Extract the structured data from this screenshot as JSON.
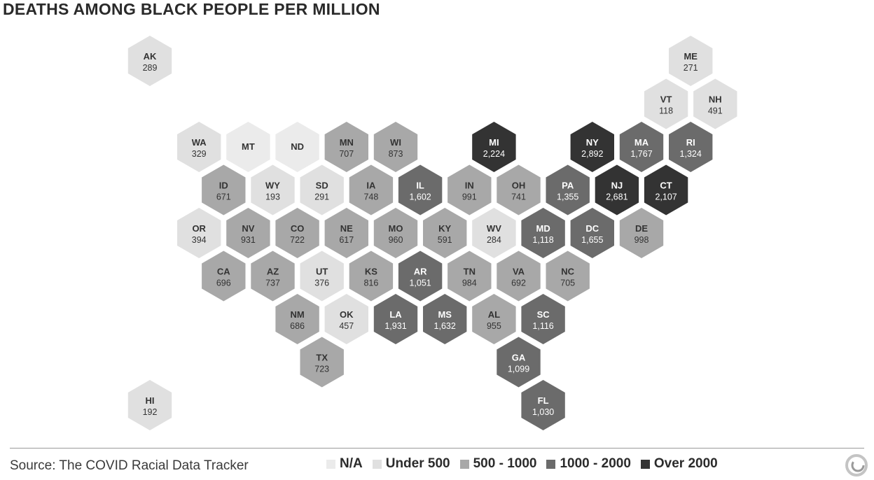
{
  "title": "DEATHS AMONG BLACK PEOPLE PER MILLION",
  "source": "Source: The COVID Racial Data Tracker",
  "colors": {
    "na": "#ebebeb",
    "under500": "#e0e0e0",
    "500-1000": "#a8a8a8",
    "1000-2000": "#6b6b6b",
    "over2000": "#333333",
    "text_light": "#ffffff",
    "text_dark": "#333333"
  },
  "legend": [
    {
      "label": "N/A",
      "class": "na"
    },
    {
      "label": "Under 500",
      "class": "under500"
    },
    {
      "label": "500 - 1000",
      "class": "500-1000"
    },
    {
      "label": "1000 - 2000",
      "class": "1000-2000"
    },
    {
      "label": "Over 2000",
      "class": "over2000"
    }
  ],
  "states": [
    {
      "abbr": "AK",
      "value": "289",
      "row": 0,
      "col": 0,
      "class": "under500"
    },
    {
      "abbr": "ME",
      "value": "271",
      "row": 0,
      "col": 11,
      "class": "under500"
    },
    {
      "abbr": "VT",
      "value": "118",
      "row": 1,
      "col": 10,
      "class": "under500"
    },
    {
      "abbr": "NH",
      "value": "491",
      "row": 1,
      "col": 11,
      "class": "under500"
    },
    {
      "abbr": "WA",
      "value": "329",
      "row": 2,
      "col": 1,
      "class": "under500"
    },
    {
      "abbr": "MT",
      "value": "",
      "row": 2,
      "col": 2,
      "class": "na"
    },
    {
      "abbr": "ND",
      "value": "",
      "row": 2,
      "col": 3,
      "class": "na"
    },
    {
      "abbr": "MN",
      "value": "707",
      "row": 2,
      "col": 4,
      "class": "500-1000"
    },
    {
      "abbr": "WI",
      "value": "873",
      "row": 2,
      "col": 5,
      "class": "500-1000"
    },
    {
      "abbr": "MI",
      "value": "2,224",
      "row": 2,
      "col": 7,
      "class": "over2000"
    },
    {
      "abbr": "NY",
      "value": "2,892",
      "row": 2,
      "col": 9,
      "class": "over2000"
    },
    {
      "abbr": "MA",
      "value": "1,767",
      "row": 2,
      "col": 10,
      "class": "1000-2000"
    },
    {
      "abbr": "RI",
      "value": "1,324",
      "row": 2,
      "col": 11,
      "class": "1000-2000"
    },
    {
      "abbr": "ID",
      "value": "671",
      "row": 3,
      "col": 1,
      "class": "500-1000"
    },
    {
      "abbr": "WY",
      "value": "193",
      "row": 3,
      "col": 2,
      "class": "under500"
    },
    {
      "abbr": "SD",
      "value": "291",
      "row": 3,
      "col": 3,
      "class": "under500"
    },
    {
      "abbr": "IA",
      "value": "748",
      "row": 3,
      "col": 4,
      "class": "500-1000"
    },
    {
      "abbr": "IL",
      "value": "1,602",
      "row": 3,
      "col": 5,
      "class": "1000-2000"
    },
    {
      "abbr": "IN",
      "value": "991",
      "row": 3,
      "col": 6,
      "class": "500-1000"
    },
    {
      "abbr": "OH",
      "value": "741",
      "row": 3,
      "col": 7,
      "class": "500-1000"
    },
    {
      "abbr": "PA",
      "value": "1,355",
      "row": 3,
      "col": 8,
      "class": "1000-2000"
    },
    {
      "abbr": "NJ",
      "value": "2,681",
      "row": 3,
      "col": 9,
      "class": "over2000"
    },
    {
      "abbr": "CT",
      "value": "2,107",
      "row": 3,
      "col": 10,
      "class": "over2000"
    },
    {
      "abbr": "OR",
      "value": "394",
      "row": 4,
      "col": 1,
      "class": "under500"
    },
    {
      "abbr": "NV",
      "value": "931",
      "row": 4,
      "col": 2,
      "class": "500-1000"
    },
    {
      "abbr": "CO",
      "value": "722",
      "row": 4,
      "col": 3,
      "class": "500-1000"
    },
    {
      "abbr": "NE",
      "value": "617",
      "row": 4,
      "col": 4,
      "class": "500-1000"
    },
    {
      "abbr": "MO",
      "value": "960",
      "row": 4,
      "col": 5,
      "class": "500-1000"
    },
    {
      "abbr": "KY",
      "value": "591",
      "row": 4,
      "col": 6,
      "class": "500-1000"
    },
    {
      "abbr": "WV",
      "value": "284",
      "row": 4,
      "col": 7,
      "class": "under500"
    },
    {
      "abbr": "MD",
      "value": "1,118",
      "row": 4,
      "col": 8,
      "class": "1000-2000"
    },
    {
      "abbr": "DC",
      "value": "1,655",
      "row": 4,
      "col": 9,
      "class": "1000-2000"
    },
    {
      "abbr": "DE",
      "value": "998",
      "row": 4,
      "col": 10,
      "class": "500-1000"
    },
    {
      "abbr": "CA",
      "value": "696",
      "row": 5,
      "col": 1,
      "class": "500-1000"
    },
    {
      "abbr": "AZ",
      "value": "737",
      "row": 5,
      "col": 2,
      "class": "500-1000"
    },
    {
      "abbr": "UT",
      "value": "376",
      "row": 5,
      "col": 3,
      "class": "under500"
    },
    {
      "abbr": "KS",
      "value": "816",
      "row": 5,
      "col": 4,
      "class": "500-1000"
    },
    {
      "abbr": "AR",
      "value": "1,051",
      "row": 5,
      "col": 5,
      "class": "1000-2000"
    },
    {
      "abbr": "TN",
      "value": "984",
      "row": 5,
      "col": 6,
      "class": "500-1000"
    },
    {
      "abbr": "VA",
      "value": "692",
      "row": 5,
      "col": 7,
      "class": "500-1000"
    },
    {
      "abbr": "NC",
      "value": "705",
      "row": 5,
      "col": 8,
      "class": "500-1000"
    },
    {
      "abbr": "NM",
      "value": "686",
      "row": 6,
      "col": 3,
      "class": "500-1000"
    },
    {
      "abbr": "OK",
      "value": "457",
      "row": 6,
      "col": 4,
      "class": "under500"
    },
    {
      "abbr": "LA",
      "value": "1,931",
      "row": 6,
      "col": 5,
      "class": "1000-2000"
    },
    {
      "abbr": "MS",
      "value": "1,632",
      "row": 6,
      "col": 6,
      "class": "1000-2000"
    },
    {
      "abbr": "AL",
      "value": "955",
      "row": 6,
      "col": 7,
      "class": "500-1000"
    },
    {
      "abbr": "SC",
      "value": "1,116",
      "row": 6,
      "col": 8,
      "class": "1000-2000"
    },
    {
      "abbr": "TX",
      "value": "723",
      "row": 7,
      "col": 3,
      "class": "500-1000"
    },
    {
      "abbr": "GA",
      "value": "1,099",
      "row": 7,
      "col": 7,
      "class": "1000-2000"
    },
    {
      "abbr": "HI",
      "value": "192",
      "row": 8,
      "col": 0,
      "class": "under500"
    },
    {
      "abbr": "FL",
      "value": "1,030",
      "row": 8,
      "col": 8,
      "class": "1000-2000"
    }
  ]
}
